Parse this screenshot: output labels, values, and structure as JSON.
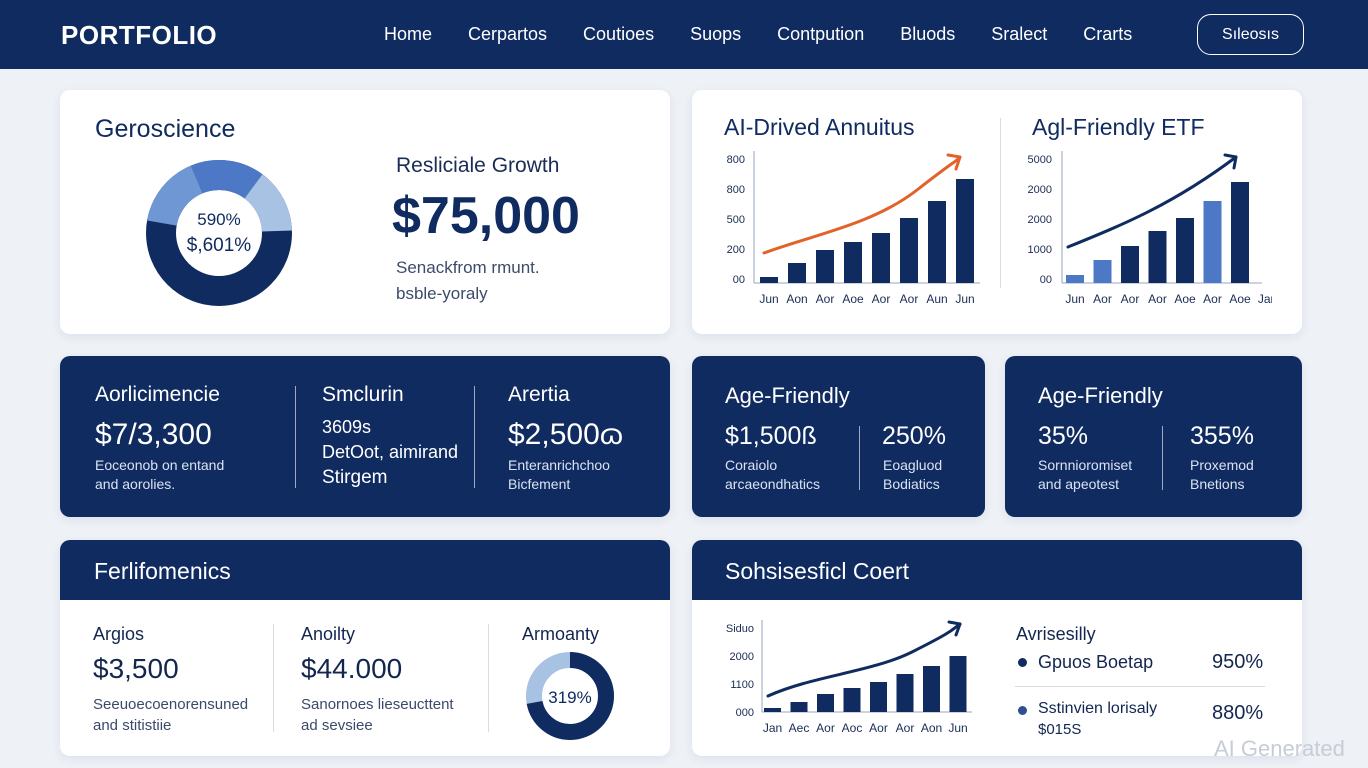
{
  "header": {
    "brand": "PORTFOLIO",
    "nav": [
      "Home",
      "Cerpartos",
      "Coutioes",
      "Suops",
      "Contpution",
      "Bluods",
      "Sralect",
      "Crarts"
    ],
    "button": "Sıleosıs"
  },
  "geroscience": {
    "title": "Geroscience",
    "donut_line1": "590%",
    "donut_line2": "$,601%",
    "growth_label": "Resliciale Growth",
    "growth_value": "$75,000",
    "note_line1": "Senackfrom rmunt.",
    "note_line2": "bsble-yoraly"
  },
  "annuities_chart": {
    "title": "AI-Drived Annuitus",
    "yticks": [
      "800",
      "800",
      "500",
      "200",
      "00"
    ],
    "xticks": [
      "Jun",
      "Aon",
      "Aor",
      "Aoe",
      "Aor",
      "Aor",
      "Aun",
      "Jun"
    ]
  },
  "etf_chart": {
    "title": "Agl-Friendly ETF",
    "yticks": [
      "5000",
      "2000",
      "2000",
      "1000",
      "00"
    ],
    "xticks": [
      "Jun",
      "Aor",
      "Aor",
      "Aor",
      "Aoe",
      "Aor",
      "Aoe",
      "Jan"
    ]
  },
  "stats_left": {
    "col1_title": "Aorlicimencie",
    "col1_value": "$7/3,300",
    "col1_desc1": "Eoceonob on entand",
    "col1_desc2": "and aorolies.",
    "col2_line1": "Smclurin",
    "col2_line2": "3609s",
    "col2_line3": "DetOot, aimirand",
    "col2_line4": "Stirgem",
    "col3_title": "Arertia",
    "col3_value": "$2,500ɷ",
    "col3_desc1": "Enteranrichchoo",
    "col3_desc2": "Bicfement"
  },
  "age_friendly_1": {
    "title": "Age-Friendly",
    "value1": "$1,500ß",
    "value2": "250%",
    "desc1a": "Coraiolo",
    "desc1b": "arcaeondhatics",
    "desc2a": "Eoagluod",
    "desc2b": "Bodiatics"
  },
  "age_friendly_2": {
    "title": "Age-Friendly",
    "value1": "35%",
    "value2": "355%",
    "desc1a": "Sornnioromiset",
    "desc1b": "and apeotest",
    "desc2a": "Proxemod",
    "desc2b": "Bnetions"
  },
  "performance": {
    "header": "Ferlifomenics",
    "col1_title": "Argios",
    "col1_value": "$3,500",
    "col1_desc1": "Seeuoecoenorensuned",
    "col1_desc2": "and stitistiie",
    "col2_title": "Anoilty",
    "col2_value": "$44.000",
    "col2_desc1": "Sanornoes lieseucttent",
    "col2_desc2": "ad sevsiee",
    "col3_title": "Armoanty",
    "col3_donut": "319%",
    "donut_fraction": 0.72
  },
  "sophisticated": {
    "header": "Sohsisesficl Coert",
    "yticks": [
      "Siduo",
      "2000",
      "1100",
      "000"
    ],
    "xticks": [
      "Jan",
      "Aec",
      "Aor",
      "Aoc",
      "Aor",
      "Aor",
      "Aon",
      "Jun"
    ],
    "list_title": "Avrisesilly",
    "item1_label": "Gpuos Boetap",
    "item1_value": "950%",
    "item2_label": "Sstinvien lorisaly",
    "item2_sub": "$015S",
    "item2_value": "880%"
  },
  "colors": {
    "navy": "#0f2b60",
    "mid_blue": "#4c78c5",
    "light_blue": "#a8c2e4",
    "orange": "#e1622a"
  },
  "watermark": "AI Generated"
}
